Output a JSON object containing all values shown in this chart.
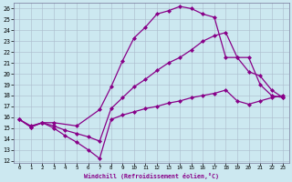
{
  "xlabel": "Windchill (Refroidissement éolien,°C)",
  "bg_color": "#cce8f0",
  "line_color": "#880088",
  "grid_color": "#aabbcc",
  "xlim": [
    -0.5,
    23.5
  ],
  "ylim": [
    11.8,
    26.5
  ],
  "xticks": [
    0,
    1,
    2,
    3,
    4,
    5,
    6,
    7,
    8,
    9,
    10,
    11,
    12,
    13,
    14,
    15,
    16,
    17,
    18,
    19,
    20,
    21,
    22,
    23
  ],
  "yticks": [
    12,
    13,
    14,
    15,
    16,
    17,
    18,
    19,
    20,
    21,
    22,
    23,
    24,
    25,
    26
  ],
  "lines": [
    {
      "x": [
        0,
        1,
        2,
        3,
        4,
        5,
        6,
        7,
        8,
        9,
        10,
        11,
        12,
        13,
        14,
        15,
        16,
        17,
        18,
        19,
        20,
        21,
        22,
        23
      ],
      "y": [
        15.8,
        15.1,
        15.5,
        15.0,
        14.3,
        13.7,
        13.0,
        12.2,
        15.8,
        16.2,
        16.5,
        16.8,
        17.0,
        17.3,
        17.5,
        17.8,
        18.0,
        18.2,
        18.5,
        17.5,
        17.2,
        17.5,
        17.8,
        18.0
      ],
      "marker": "D",
      "markersize": 2,
      "linewidth": 0.9
    },
    {
      "x": [
        0,
        1,
        2,
        3,
        5,
        7,
        8,
        9,
        10,
        11,
        12,
        13,
        14,
        15,
        16,
        17,
        18,
        19,
        20,
        21,
        22,
        23
      ],
      "y": [
        15.8,
        15.2,
        15.5,
        15.5,
        15.2,
        16.7,
        18.8,
        21.2,
        23.3,
        24.3,
        25.5,
        25.8,
        26.2,
        26.0,
        25.5,
        25.2,
        21.5,
        21.5,
        21.5,
        19.0,
        18.0,
        17.8
      ],
      "marker": "D",
      "markersize": 2,
      "linewidth": 0.9
    },
    {
      "x": [
        0,
        1,
        2,
        3,
        4,
        5,
        6,
        7,
        8,
        9,
        10,
        11,
        12,
        13,
        14,
        15,
        16,
        17,
        18,
        19,
        20,
        21,
        22,
        23
      ],
      "y": [
        15.8,
        15.1,
        15.5,
        15.2,
        14.8,
        14.5,
        14.2,
        13.8,
        16.8,
        17.8,
        18.8,
        19.5,
        20.3,
        21.0,
        21.5,
        22.2,
        23.0,
        23.5,
        23.8,
        21.5,
        20.2,
        19.8,
        18.5,
        17.8
      ],
      "marker": "D",
      "markersize": 2,
      "linewidth": 0.9
    }
  ]
}
